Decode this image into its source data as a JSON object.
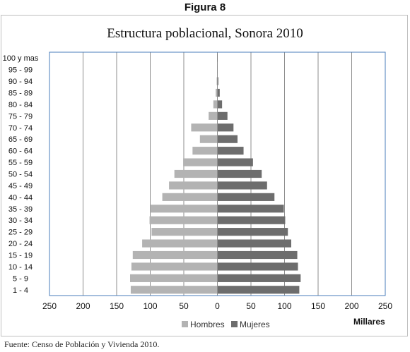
{
  "figure_label": "Figura 8",
  "source_note": "Fuente: Censo de Población y Vivienda 2010.",
  "colors": {
    "hombres": "#b3b3b3",
    "mujeres": "#6d6d6d",
    "frame": "#4a7ebb",
    "grid": "#8c8c8c"
  },
  "chart_data": {
    "type": "bar",
    "orientation": "horizontal",
    "layout": "population-pyramid",
    "title": "Estructura poblacional, Sonora 2010",
    "xlabel": "Millares",
    "xlim": [
      -250,
      250
    ],
    "x_ticks": [
      "250",
      "200",
      "150",
      "100",
      "50",
      "0",
      "50",
      "100",
      "150",
      "200",
      "250"
    ],
    "legend_position": "bottom",
    "grid": true,
    "categories": [
      "100 y mas",
      "95 - 99",
      "90 - 94",
      "85 - 89",
      "80 - 84",
      "75 - 79",
      "70 - 74",
      "65 - 69",
      "60 - 64",
      "55 - 59",
      "50 - 54",
      "45 - 49",
      "40 - 44",
      "35 - 39",
      "30 - 34",
      "25 - 29",
      "20 - 24",
      "15 - 19",
      "10 - 14",
      "5 - 9",
      "1 - 4"
    ],
    "series": [
      {
        "name": "Hombres",
        "side": "left",
        "values": [
          0.1,
          0.3,
          1,
          2.5,
          6,
          13,
          39,
          26,
          37,
          51,
          64,
          72,
          82,
          100,
          101,
          98,
          112,
          126,
          128,
          130,
          129
        ]
      },
      {
        "name": "Mujeres",
        "side": "right",
        "values": [
          0.1,
          0.4,
          1.5,
          3.5,
          7,
          15,
          24,
          30,
          39,
          53,
          66,
          74,
          85,
          99,
          101,
          105,
          110,
          119,
          120,
          124,
          122
        ]
      }
    ]
  }
}
